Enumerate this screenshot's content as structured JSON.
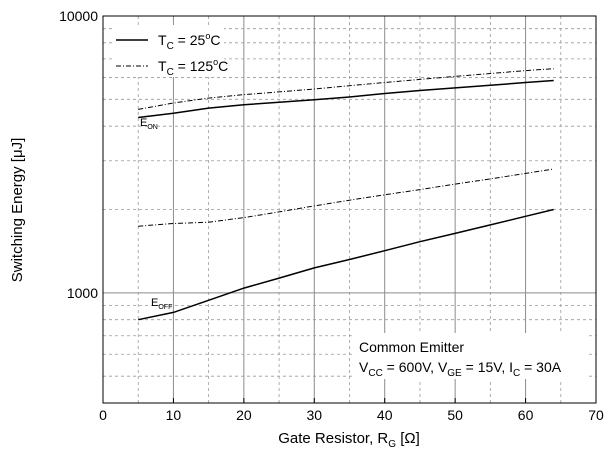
{
  "chart_data": {
    "type": "line",
    "xlabel_main": "Gate Resistor, R",
    "xlabel_sub": "G",
    "xlabel_unit": " [Ω]",
    "ylabel": "Switching Energy [μJ]",
    "xlim": [
      0,
      70
    ],
    "xticks": [
      0,
      10,
      20,
      30,
      40,
      50,
      60,
      70
    ],
    "ylim": [
      400,
      10000
    ],
    "yscale": "log",
    "yticks": [
      1000,
      10000
    ],
    "grid": true,
    "legend": {
      "placement": "top-left",
      "entries": [
        {
          "label_main": "T",
          "label_sub": "C",
          "label_rest": " = 25",
          "label_sup": "o",
          "label_end": "C",
          "style": "solid"
        },
        {
          "label_main": "T",
          "label_sub": "C",
          "label_rest": " = 125",
          "label_sup": "o",
          "label_end": "C",
          "style": "dash-dot"
        }
      ]
    },
    "annotations": {
      "eon": {
        "main": "E",
        "sub": "ON"
      },
      "eoff": {
        "main": "E",
        "sub": "OFF"
      },
      "condition_title": "Common Emitter",
      "condition_parts": [
        {
          "t": "V"
        },
        {
          "t": "CC",
          "sub": true
        },
        {
          "t": " = 600V, V"
        },
        {
          "t": "GE",
          "sub": true
        },
        {
          "t": " = 15V, I"
        },
        {
          "t": "C",
          "sub": true
        },
        {
          "t": " = 30A"
        }
      ]
    },
    "series": [
      {
        "group": "Eon",
        "style": "solid",
        "x": [
          5,
          10,
          15,
          20,
          25,
          30,
          35,
          40,
          45,
          50,
          55,
          60,
          64
        ],
        "y": [
          4300,
          4450,
          4650,
          4780,
          4880,
          4980,
          5100,
          5250,
          5380,
          5500,
          5620,
          5750,
          5850
        ]
      },
      {
        "group": "Eon",
        "style": "dash-dot",
        "x": [
          5,
          10,
          15,
          20,
          25,
          30,
          35,
          40,
          45,
          50,
          55,
          60,
          64
        ],
        "y": [
          4600,
          4850,
          5050,
          5200,
          5320,
          5450,
          5600,
          5750,
          5900,
          6050,
          6200,
          6350,
          6450
        ]
      },
      {
        "group": "Eoff",
        "style": "solid",
        "x": [
          5,
          10,
          15,
          20,
          25,
          30,
          35,
          40,
          45,
          50,
          55,
          60,
          64
        ],
        "y": [
          800,
          850,
          940,
          1040,
          1130,
          1230,
          1320,
          1420,
          1530,
          1640,
          1760,
          1890,
          2000
        ]
      },
      {
        "group": "Eoff",
        "style": "dash-dot",
        "x": [
          5,
          10,
          15,
          20,
          25,
          30,
          35,
          40,
          45,
          50,
          55,
          60,
          64
        ],
        "y": [
          1740,
          1780,
          1800,
          1870,
          1960,
          2060,
          2160,
          2260,
          2360,
          2470,
          2580,
          2700,
          2800
        ]
      }
    ]
  }
}
